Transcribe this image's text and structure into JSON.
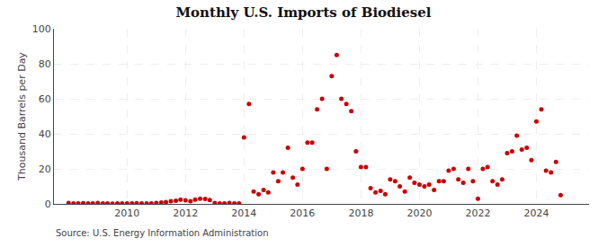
{
  "chart_data": {
    "type": "scatter",
    "title": "Monthly U.S. Imports of Biodiesel",
    "ylabel": "Thousand Barrels per Day",
    "annotations": [
      "Source: U.S. Energy Information Administration"
    ],
    "color": "#cc0000",
    "grid": true,
    "xlim": [
      2007.5,
      2025.8
    ],
    "ylim": [
      0,
      100
    ],
    "xticks": [
      2010,
      2012,
      2014,
      2016,
      2018,
      2020,
      2022,
      2024
    ],
    "yticks": [
      0,
      20,
      40,
      60,
      80,
      100
    ],
    "x": [
      2008.0,
      2008.17,
      2008.33,
      2008.5,
      2008.67,
      2008.83,
      2009.0,
      2009.17,
      2009.33,
      2009.5,
      2009.67,
      2009.83,
      2010.0,
      2010.17,
      2010.33,
      2010.5,
      2010.67,
      2010.83,
      2011.0,
      2011.17,
      2011.33,
      2011.5,
      2011.67,
      2011.83,
      2012.0,
      2012.17,
      2012.33,
      2012.5,
      2012.67,
      2012.83,
      2013.0,
      2013.17,
      2013.33,
      2013.5,
      2013.67,
      2013.83,
      2014.0,
      2014.17,
      2014.33,
      2014.5,
      2014.67,
      2014.83,
      2015.0,
      2015.17,
      2015.33,
      2015.5,
      2015.67,
      2015.83,
      2016.0,
      2016.17,
      2016.33,
      2016.5,
      2016.67,
      2016.83,
      2017.0,
      2017.17,
      2017.33,
      2017.5,
      2017.67,
      2017.83,
      2018.0,
      2018.17,
      2018.33,
      2018.5,
      2018.67,
      2018.83,
      2019.0,
      2019.17,
      2019.33,
      2019.5,
      2019.67,
      2019.83,
      2020.0,
      2020.17,
      2020.33,
      2020.5,
      2020.67,
      2020.83,
      2021.0,
      2021.17,
      2021.33,
      2021.5,
      2021.67,
      2021.83,
      2022.0,
      2022.17,
      2022.33,
      2022.5,
      2022.67,
      2022.83,
      2023.0,
      2023.17,
      2023.33,
      2023.5,
      2023.67,
      2023.83,
      2024.0,
      2024.17,
      2024.33,
      2024.5,
      2024.67,
      2024.83
    ],
    "values": [
      0.5,
      0.3,
      0.2,
      0.4,
      0.3,
      0.2,
      0.5,
      0.3,
      0.2,
      0.1,
      0.2,
      0.2,
      0.3,
      0.2,
      0.4,
      0.3,
      0.2,
      0.3,
      0.5,
      0.8,
      1.0,
      1.5,
      1.8,
      2.5,
      2.0,
      1.5,
      2.5,
      3.0,
      2.8,
      2.2,
      0.5,
      0.3,
      0.2,
      0.5,
      0.3,
      0.2,
      38.0,
      57.0,
      7.0,
      5.5,
      8.0,
      6.5,
      18.0,
      13.0,
      18.0,
      32.0,
      15.0,
      11.0,
      20.0,
      35.0,
      35.0,
      54.0,
      60.0,
      20.0,
      73.0,
      85.0,
      60.0,
      57.0,
      53.0,
      30.0,
      21.0,
      21.0,
      9.0,
      6.5,
      7.5,
      5.5,
      14.0,
      13.0,
      10.0,
      7.0,
      15.0,
      12.0,
      11.0,
      10.0,
      11.0,
      8.0,
      13.0,
      13.0,
      19.0,
      20.0,
      14.0,
      12.0,
      20.0,
      13.0,
      3.0,
      20.0,
      21.0,
      13.0,
      11.0,
      14.0,
      29.0,
      30.0,
      39.0,
      31.0,
      32.0,
      25.0,
      47.0,
      54.0,
      19.0,
      18.0,
      24.0,
      5.0
    ]
  }
}
